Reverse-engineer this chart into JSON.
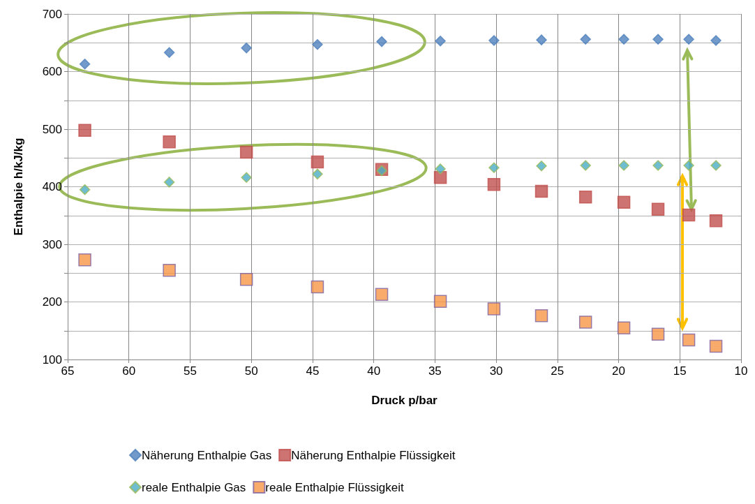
{
  "chart_data": {
    "type": "scatter",
    "xlabel": "Druck p/bar",
    "ylabel": "Enthalpie h/kJ/kg",
    "x": [
      63.6,
      56.7,
      50.4,
      44.6,
      39.35,
      34.56,
      30.18,
      26.3,
      22.7,
      19.57,
      16.78,
      14.27,
      12.05
    ],
    "series": [
      {
        "name": "Näherung Enthalpie Gas",
        "color": "#4f81bd",
        "marker": "diamond",
        "values": [
          613,
          633,
          641,
          647,
          652,
          653,
          654,
          655,
          656,
          656,
          656,
          656,
          654
        ]
      },
      {
        "name": "Näherung Enthalpie Flüssigkeit",
        "color": "#c0504d",
        "marker": "square",
        "values": [
          498,
          478,
          460,
          443,
          430,
          416,
          404,
          392,
          382,
          373,
          361,
          351,
          341
        ]
      },
      {
        "name": "reale Enthalpie Gas",
        "color": "#4bacc6",
        "marker": "diamond",
        "values": [
          395,
          408,
          416,
          422,
          428,
          431,
          433,
          436,
          437,
          437,
          437,
          437,
          437
        ]
      },
      {
        "name": "reale Enthalpie Flüssigkeit",
        "color": "#f79646",
        "marker": "square",
        "values": [
          273,
          255,
          239,
          226,
          213,
          201,
          188,
          176,
          165,
          155,
          144,
          134,
          123
        ]
      }
    ],
    "xlim": [
      65,
      10
    ],
    "xticks": [
      65,
      60,
      55,
      50,
      45,
      40,
      35,
      30,
      25,
      20,
      15,
      10
    ],
    "ylim": [
      100,
      700
    ],
    "yticks": [
      100,
      {
        "value": 150,
        "label": null
      },
      200,
      {
        "value": 250,
        "label": null
      },
      300,
      {
        "value": 350,
        "label": null
      },
      400,
      {
        "value": 450,
        "label": null
      },
      500,
      {
        "value": 550,
        "label": null
      },
      600,
      {
        "value": 650,
        "label": null
      },
      700
    ],
    "grid": true,
    "legend": "bottom"
  }
}
